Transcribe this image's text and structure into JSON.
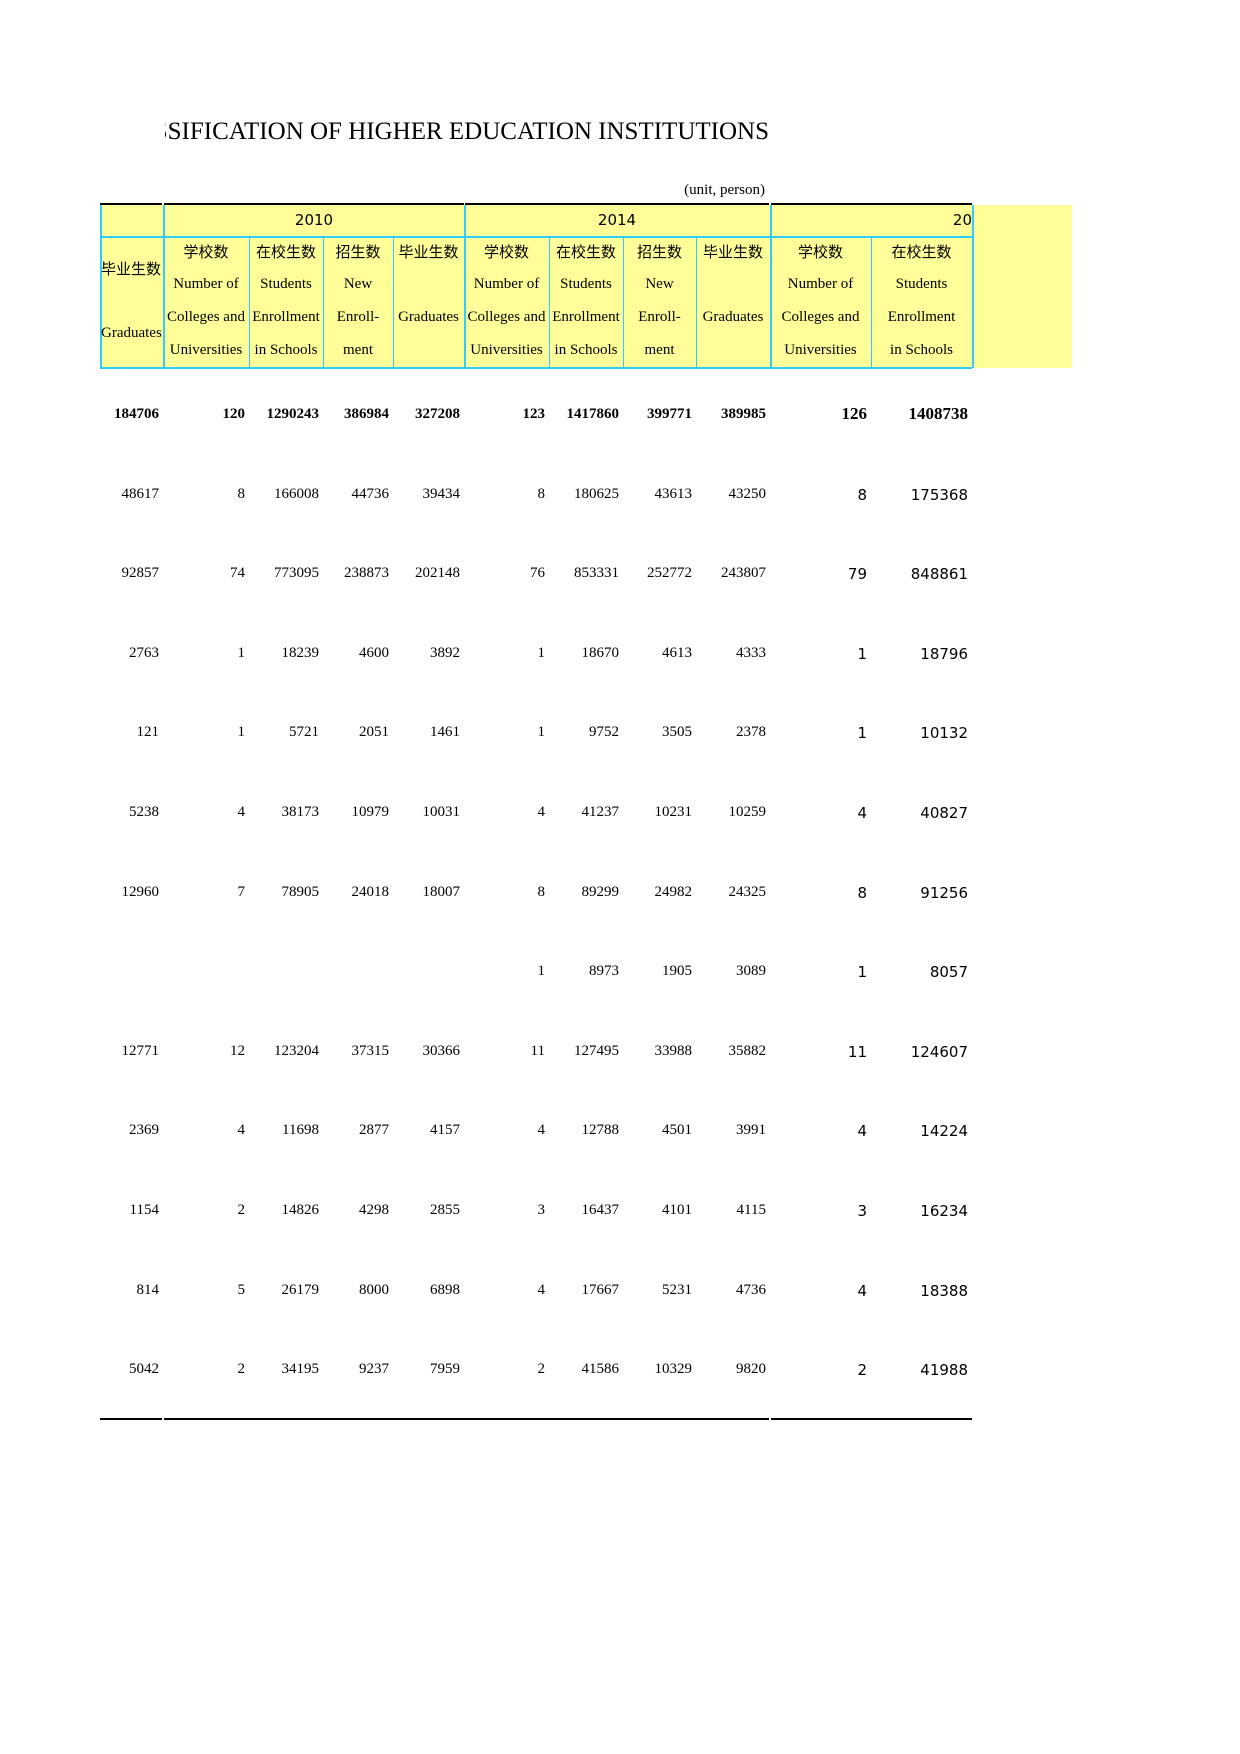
{
  "title": "CLASSIFICATION OF HIGHER EDUCATION INSTITUTIONS",
  "unit": "(unit, person)",
  "years": [
    "2010",
    "2014",
    "20"
  ],
  "first_col_header": {
    "zh": "毕业生数",
    "en": "Graduates"
  },
  "col_headers": [
    {
      "zh": "学校数",
      "en": [
        "Number of",
        "Colleges and",
        "Universities"
      ]
    },
    {
      "zh": "在校生数",
      "en": [
        "Students",
        "Enrollment",
        "in Schools"
      ]
    },
    {
      "zh": "招生数",
      "en": [
        "New",
        "Enroll-",
        "ment"
      ]
    },
    {
      "zh": "毕业生数",
      "en": [
        "",
        "Graduates",
        ""
      ]
    },
    {
      "zh": "学校数",
      "en": [
        "Number of",
        "Colleges and",
        "Universities"
      ]
    },
    {
      "zh": "在校生数",
      "en": [
        "Students",
        "Enrollment",
        "in Schools"
      ]
    },
    {
      "zh": "招生数",
      "en": [
        "New",
        "Enroll-",
        "ment"
      ]
    },
    {
      "zh": "毕业生数",
      "en": [
        "",
        "Graduates",
        ""
      ]
    },
    {
      "zh": "学校数",
      "en": [
        "Number of",
        "Colleges and",
        "Universities"
      ]
    },
    {
      "zh": "在校生数",
      "en": [
        "Students",
        "Enrollment",
        "in Schools"
      ]
    }
  ],
  "rows": [
    [
      "184706",
      "120",
      "1290243",
      "386984",
      "327208",
      "123",
      "1417860",
      "399771",
      "389985",
      "126",
      "1408738"
    ],
    [
      "48617",
      "8",
      "166008",
      "44736",
      "39434",
      "8",
      "180625",
      "43613",
      "43250",
      "8",
      "175368"
    ],
    [
      "92857",
      "74",
      "773095",
      "238873",
      "202148",
      "76",
      "853331",
      "252772",
      "243807",
      "79",
      "848861"
    ],
    [
      "2763",
      "1",
      "18239",
      "4600",
      "3892",
      "1",
      "18670",
      "4613",
      "4333",
      "1",
      "18796"
    ],
    [
      "121",
      "1",
      "5721",
      "2051",
      "1461",
      "1",
      "9752",
      "3505",
      "2378",
      "1",
      "10132"
    ],
    [
      "5238",
      "4",
      "38173",
      "10979",
      "10031",
      "4",
      "41237",
      "10231",
      "10259",
      "4",
      "40827"
    ],
    [
      "12960",
      "7",
      "78905",
      "24018",
      "18007",
      "8",
      "89299",
      "24982",
      "24325",
      "8",
      "91256"
    ],
    [
      "",
      "",
      "",
      "",
      "",
      "1",
      "8973",
      "1905",
      "3089",
      "1",
      "8057"
    ],
    [
      "12771",
      "12",
      "123204",
      "37315",
      "30366",
      "11",
      "127495",
      "33988",
      "35882",
      "11",
      "124607"
    ],
    [
      "2369",
      "4",
      "11698",
      "2877",
      "4157",
      "4",
      "12788",
      "4501",
      "3991",
      "4",
      "14224"
    ],
    [
      "1154",
      "2",
      "14826",
      "4298",
      "2855",
      "3",
      "16437",
      "4101",
      "4115",
      "3",
      "16234"
    ],
    [
      "814",
      "5",
      "26179",
      "8000",
      "6898",
      "4",
      "17667",
      "5231",
      "4736",
      "4",
      "18388"
    ],
    [
      "5042",
      "2",
      "34195",
      "9237",
      "7959",
      "2",
      "41586",
      "10329",
      "9820",
      "2",
      "41988"
    ]
  ],
  "colors": {
    "header_bg": "#ffff99",
    "border": "#33ccff"
  }
}
